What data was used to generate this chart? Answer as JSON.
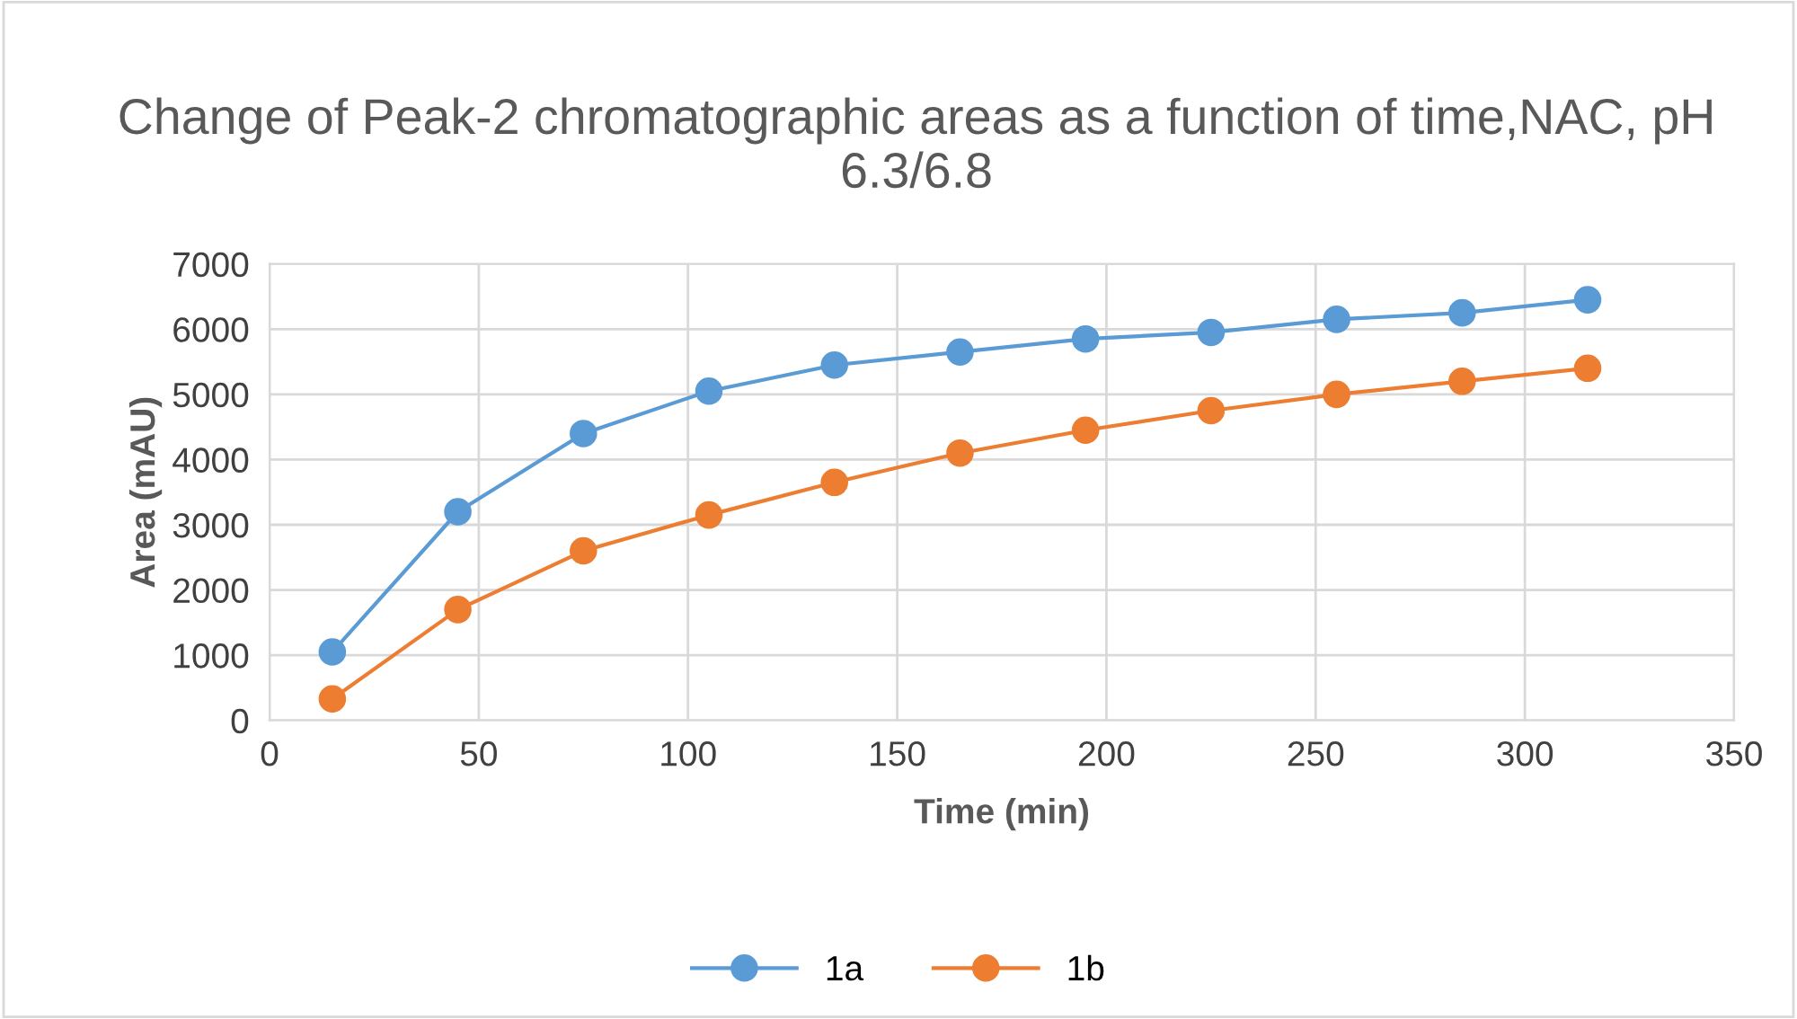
{
  "chart_data": {
    "type": "line",
    "title": "Change of Peak-2 chromatographic areas as a function of time,NAC, pH 6.3/6.8",
    "xlabel": "Time (min)",
    "ylabel": "Area (mAU)",
    "x": [
      15,
      45,
      75,
      105,
      135,
      165,
      195,
      225,
      255,
      285,
      315
    ],
    "series": [
      {
        "name": "1a",
        "color": "#5b9bd5",
        "values": [
          1050,
          3200,
          4400,
          5050,
          5450,
          5650,
          5850,
          5950,
          6150,
          6250,
          6450
        ]
      },
      {
        "name": "1b",
        "color": "#ed7d31",
        "values": [
          330,
          1700,
          2600,
          3150,
          3650,
          4100,
          4450,
          4750,
          5000,
          5200,
          5400
        ]
      }
    ],
    "xlim": [
      0,
      350
    ],
    "xticks": [
      0,
      50,
      100,
      150,
      200,
      250,
      300,
      350
    ],
    "ylim": [
      0,
      7000
    ],
    "yticks": [
      0,
      1000,
      2000,
      3000,
      4000,
      5000,
      6000,
      7000
    ],
    "grid": true,
    "legend": "bottom",
    "marker": "circle",
    "line_style": "solid"
  }
}
